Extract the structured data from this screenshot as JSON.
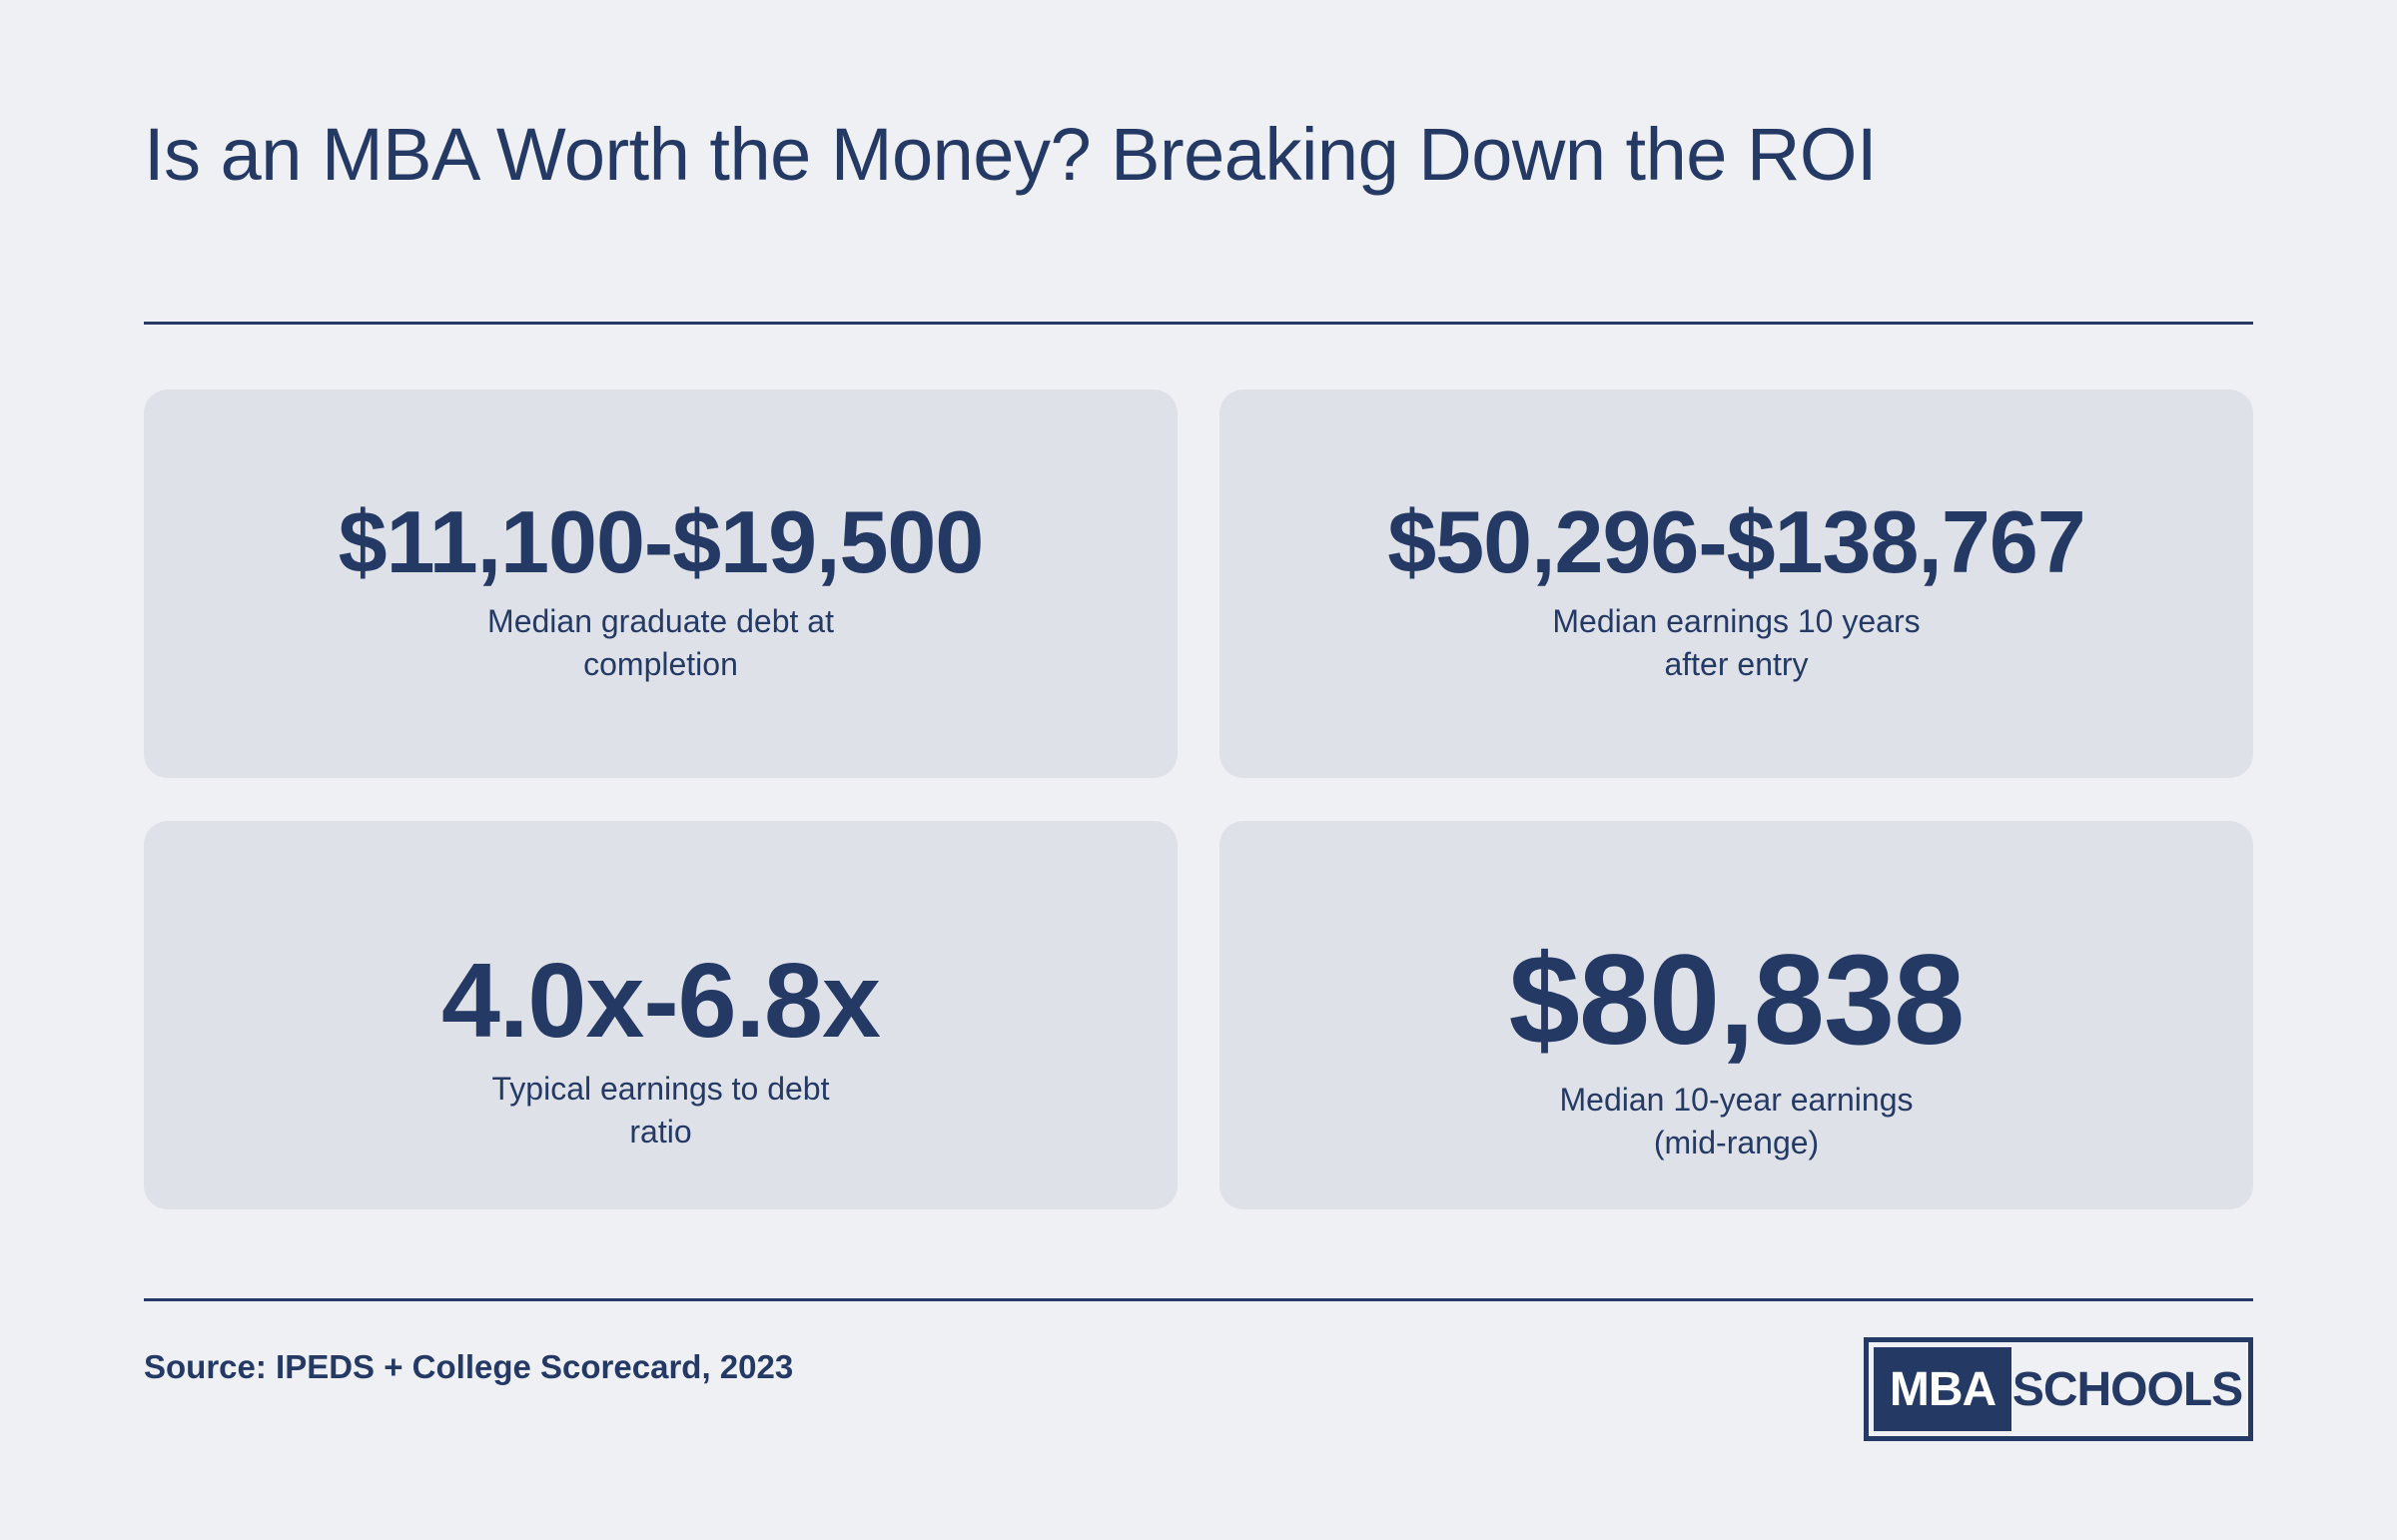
{
  "header": {
    "title": "Is an MBA Worth the Money? Breaking Down the ROI"
  },
  "cards": [
    {
      "value": "$11,100-$19,500",
      "label": "Median graduate debt at completion"
    },
    {
      "value": "$50,296-$138,767",
      "label": "Median earnings 10 years after entry"
    },
    {
      "value": "4.0x-6.8x",
      "label": "Typical earnings to debt ratio"
    },
    {
      "value": "$80,838",
      "label": "Median 10-year earnings (mid-range)"
    }
  ],
  "footer": {
    "source": "Source: IPEDS + College Scorecard, 2023",
    "logo": {
      "left": "MBA",
      "right": "SCHOOLS"
    }
  }
}
